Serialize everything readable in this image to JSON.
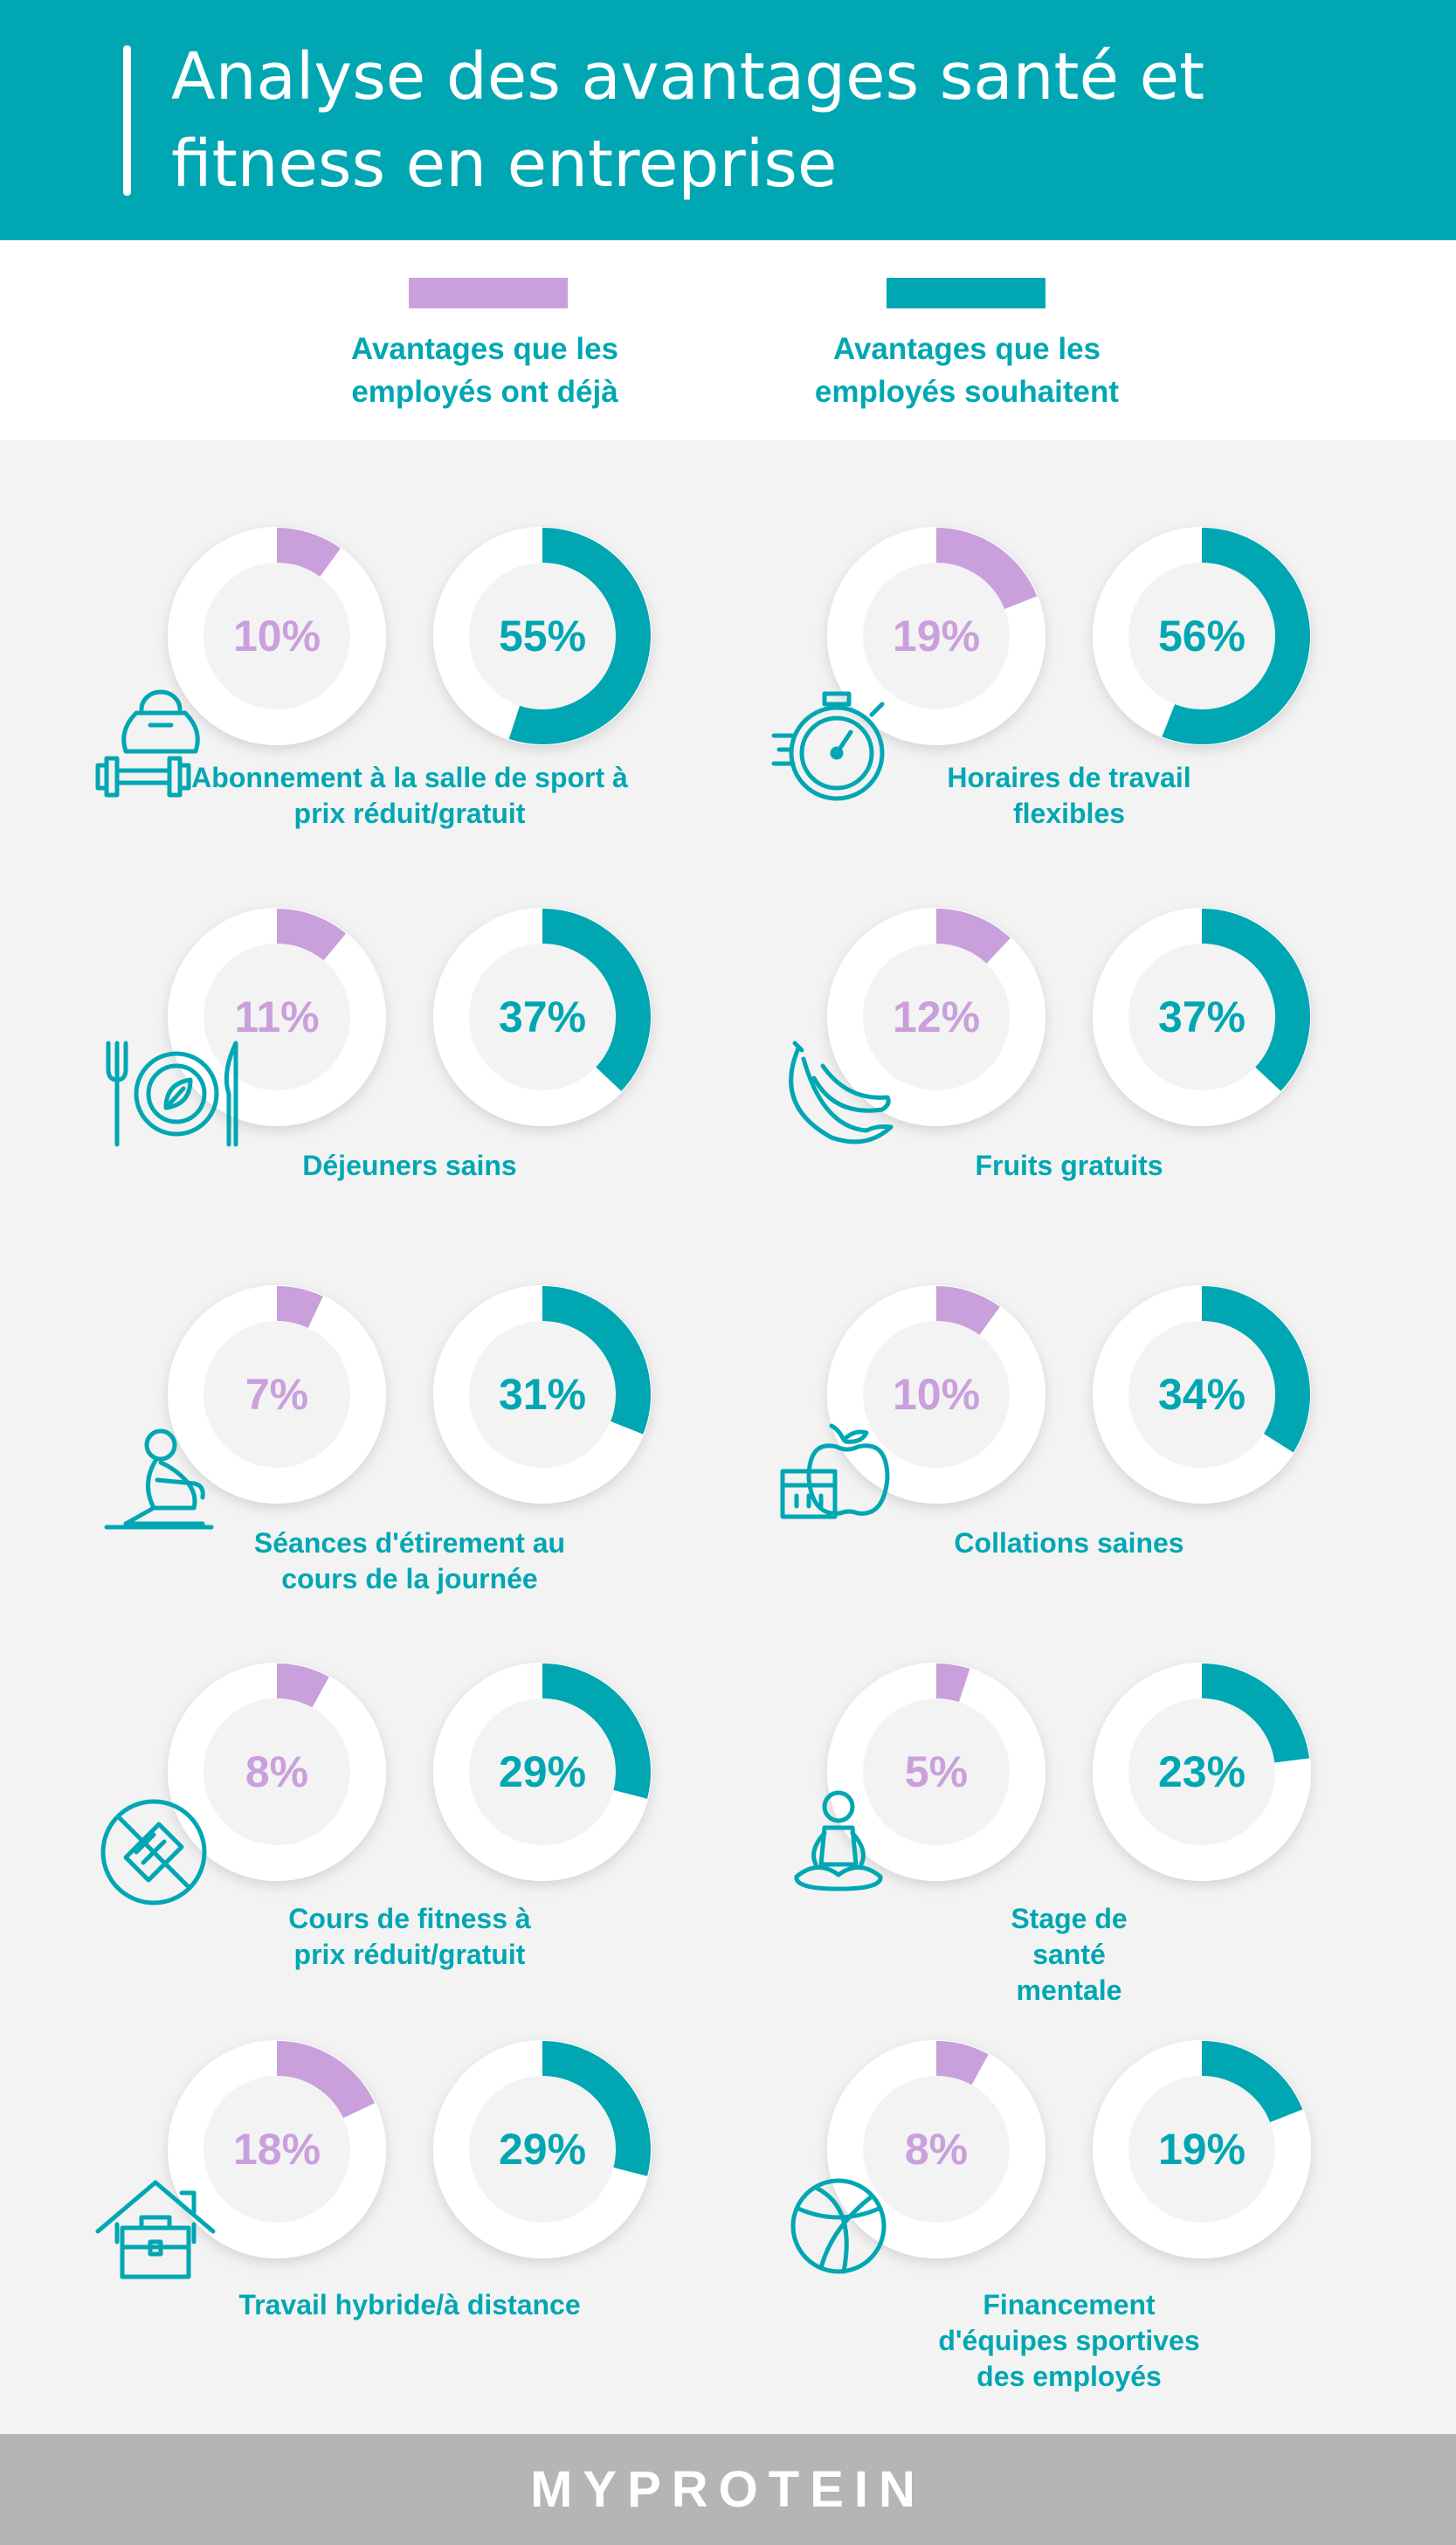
{
  "header": {
    "title": "Analyse des avantages santé et fitness en entreprise"
  },
  "legend": [
    {
      "label": "Avantages que les employés ont déjà",
      "color": "#c9a0dc"
    },
    {
      "label": "Avantages que les employés souhaitent",
      "color": "#00a7b3"
    }
  ],
  "footer": {
    "brand": "MYPROTEIN"
  },
  "chart_data": {
    "type": "donut",
    "unit": "%",
    "series": [
      {
        "name": "Avantages que les employés ont déjà",
        "color": "#c9a0dc"
      },
      {
        "name": "Avantages que les employés souhaitent",
        "color": "#00a7b3"
      }
    ],
    "items": [
      {
        "label": "Abonnement à la salle de sport à prix réduit/gratuit",
        "icon": "kettlebell-dumbbell-icon",
        "have": 10,
        "want": 55
      },
      {
        "label": "Horaires de travail flexibles",
        "icon": "stopwatch-icon",
        "have": 19,
        "want": 56
      },
      {
        "label": "Déjeuners sains",
        "icon": "plate-cutlery-icon",
        "have": 11,
        "want": 37
      },
      {
        "label": "Fruits gratuits",
        "icon": "banana-icon",
        "have": 12,
        "want": 37
      },
      {
        "label": "Séances d'étirement au cours de la journée",
        "icon": "stretching-person-icon",
        "have": 7,
        "want": 31
      },
      {
        "label": "Collations saines",
        "icon": "apple-snack-icon",
        "have": 10,
        "want": 34
      },
      {
        "label": "Cours de fitness à prix réduit/gratuit",
        "icon": "fitness-band-icon",
        "have": 8,
        "want": 29
      },
      {
        "label": "Stage de santé mentale",
        "icon": "meditation-icon",
        "have": 5,
        "want": 23
      },
      {
        "label": "Travail hybride/à distance",
        "icon": "house-briefcase-icon",
        "have": 18,
        "want": 29
      },
      {
        "label": "Financement d'équipes sportives des employés",
        "icon": "basketball-icon",
        "have": 8,
        "want": 19
      }
    ]
  }
}
